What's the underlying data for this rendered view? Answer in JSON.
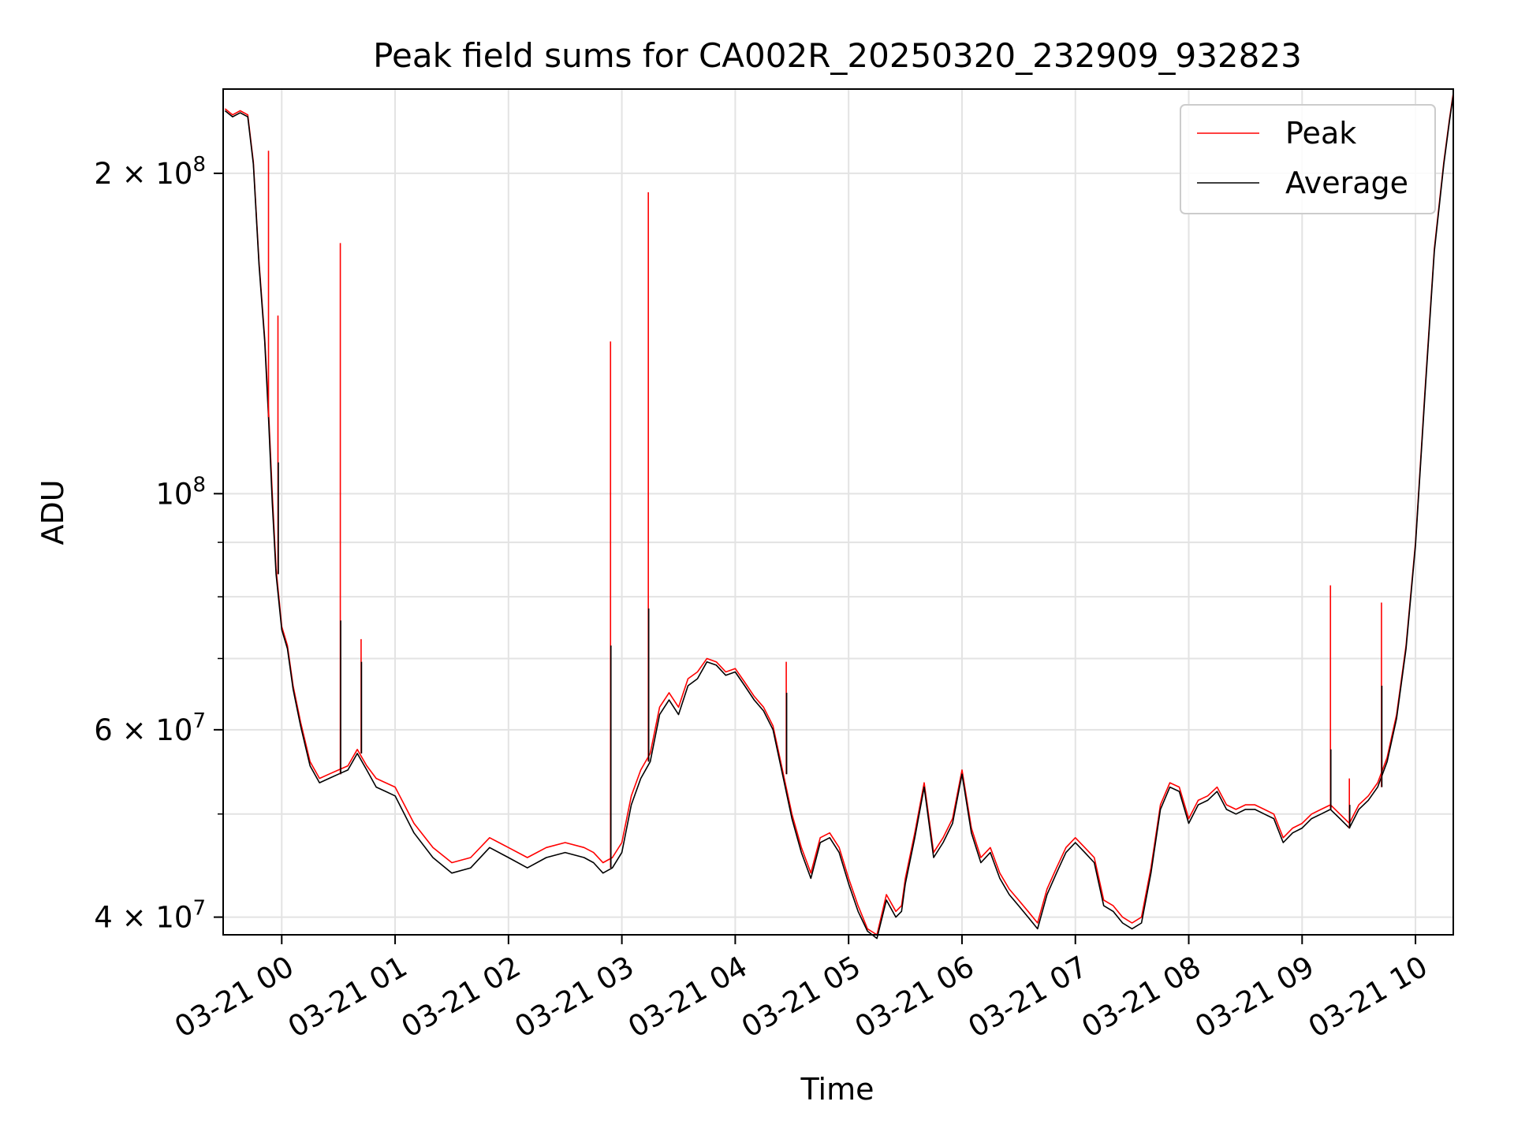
{
  "chart_data": {
    "type": "line",
    "title": "Peak field sums for CA002R_20250320_232909_932823",
    "xlabel": "Time",
    "ylabel": "ADU",
    "xlim": [
      "2025-03-20 23:29",
      "2025-03-21 10:20"
    ],
    "ylim": [
      38500000,
      240000000
    ],
    "yscale": "log",
    "x_ticks": [
      "03-21 00",
      "03-21 01",
      "03-21 02",
      "03-21 03",
      "03-21 04",
      "03-21 05",
      "03-21 06",
      "03-21 07",
      "03-21 08",
      "03-21 09",
      "03-21 10"
    ],
    "y_ticks": [
      {
        "value": 40000000,
        "base": "4",
        "exp": "7"
      },
      {
        "value": 60000000,
        "base": "6",
        "exp": "7"
      },
      {
        "value": 100000000,
        "base": "",
        "exp": "8"
      },
      {
        "value": 200000000,
        "base": "2",
        "exp": "8"
      }
    ],
    "grid": true,
    "legend_position": "top-right",
    "series": [
      {
        "name": "Peak",
        "color": "#ff0000",
        "x": [
          "03-20 23:30",
          "03-20 23:34",
          "03-20 23:38",
          "03-20 23:42",
          "03-20 23:45",
          "03-20 23:48",
          "03-20 23:51",
          "03-20 23:53",
          "03-20 23:55",
          "03-20 23:57",
          "03-21 00:00",
          "03-21 00:03",
          "03-21 00:06",
          "03-21 00:10",
          "03-21 00:15",
          "03-21 00:20",
          "03-21 00:25",
          "03-21 00:30",
          "03-21 00:35",
          "03-21 00:40",
          "03-21 00:45",
          "03-21 00:50",
          "03-21 00:55",
          "03-21 01:00",
          "03-21 01:10",
          "03-21 01:20",
          "03-21 01:30",
          "03-21 01:40",
          "03-21 01:50",
          "03-21 02:00",
          "03-21 02:10",
          "03-21 02:20",
          "03-21 02:30",
          "03-21 02:40",
          "03-21 02:45",
          "03-21 02:50",
          "03-21 02:55",
          "03-21 03:00",
          "03-21 03:05",
          "03-21 03:10",
          "03-21 03:15",
          "03-21 03:20",
          "03-21 03:25",
          "03-21 03:30",
          "03-21 03:35",
          "03-21 03:40",
          "03-21 03:45",
          "03-21 03:50",
          "03-21 03:55",
          "03-21 04:00",
          "03-21 04:05",
          "03-21 04:10",
          "03-21 04:15",
          "03-21 04:20",
          "03-21 04:25",
          "03-21 04:30",
          "03-21 04:35",
          "03-21 04:40",
          "03-21 04:45",
          "03-21 04:50",
          "03-21 04:55",
          "03-21 05:00",
          "03-21 05:05",
          "03-21 05:10",
          "03-21 05:15",
          "03-21 05:20",
          "03-21 05:25",
          "03-21 05:28",
          "03-21 05:30",
          "03-21 05:35",
          "03-21 05:40",
          "03-21 05:45",
          "03-21 05:50",
          "03-21 05:55",
          "03-21 06:00",
          "03-21 06:05",
          "03-21 06:10",
          "03-21 06:15",
          "03-21 06:20",
          "03-21 06:25",
          "03-21 06:30",
          "03-21 06:35",
          "03-21 06:40",
          "03-21 06:45",
          "03-21 06:50",
          "03-21 06:55",
          "03-21 07:00",
          "03-21 07:05",
          "03-21 07:10",
          "03-21 07:15",
          "03-21 07:20",
          "03-21 07:25",
          "03-21 07:30",
          "03-21 07:35",
          "03-21 07:40",
          "03-21 07:45",
          "03-21 07:50",
          "03-21 07:55",
          "03-21 08:00",
          "03-21 08:05",
          "03-21 08:10",
          "03-21 08:15",
          "03-21 08:20",
          "03-21 08:25",
          "03-21 08:30",
          "03-21 08:35",
          "03-21 08:40",
          "03-21 08:45",
          "03-21 08:50",
          "03-21 08:55",
          "03-21 09:00",
          "03-21 09:05",
          "03-21 09:10",
          "03-21 09:15",
          "03-21 09:20",
          "03-21 09:25",
          "03-21 09:30",
          "03-21 09:35",
          "03-21 09:40",
          "03-21 09:45",
          "03-21 09:50",
          "03-21 09:55",
          "03-21 10:00",
          "03-21 10:05",
          "03-21 10:10",
          "03-21 10:15",
          "03-21 10:18",
          "03-21 10:20"
        ],
        "y": [
          230000000,
          227000000,
          229000000,
          227000000,
          205000000,
          165000000,
          140000000,
          120000000,
          100000000,
          85000000,
          75000000,
          72000000,
          66000000,
          61000000,
          56000000,
          54000000,
          54500000,
          55000000,
          55500000,
          57500000,
          55500000,
          54000000,
          53500000,
          53000000,
          49000000,
          46500000,
          45000000,
          45500000,
          47500000,
          46500000,
          45500000,
          46500000,
          47000000,
          46500000,
          46000000,
          45000000,
          45500000,
          47000000,
          52000000,
          55000000,
          57000000,
          63000000,
          65000000,
          63000000,
          67000000,
          68000000,
          70000000,
          69500000,
          68000000,
          68500000,
          66500000,
          64500000,
          63000000,
          60500000,
          55000000,
          50000000,
          46500000,
          44000000,
          47500000,
          48000000,
          46500000,
          43500000,
          41000000,
          39000000,
          38500000,
          42000000,
          40500000,
          41000000,
          43500000,
          48000000,
          53500000,
          46000000,
          47500000,
          49500000,
          55000000,
          48500000,
          45500000,
          46500000,
          44000000,
          42500000,
          41500000,
          40500000,
          39500000,
          42500000,
          44500000,
          46500000,
          47500000,
          46500000,
          45500000,
          41500000,
          41000000,
          40000000,
          39500000,
          40000000,
          44500000,
          51000000,
          53500000,
          53000000,
          49500000,
          51500000,
          52000000,
          53000000,
          51000000,
          50500000,
          51000000,
          51000000,
          50500000,
          50000000,
          47500000,
          48500000,
          49000000,
          50000000,
          50500000,
          51000000,
          50000000,
          49000000,
          51000000,
          52000000,
          53500000,
          56500000,
          62000000,
          72000000,
          90000000,
          125000000,
          170000000,
          205000000,
          225000000,
          238000000
        ]
      },
      {
        "name": "Average",
        "color": "#000000",
        "x": [
          "03-20 23:30",
          "03-20 23:34",
          "03-20 23:38",
          "03-20 23:42",
          "03-20 23:45",
          "03-20 23:48",
          "03-20 23:51",
          "03-20 23:53",
          "03-20 23:55",
          "03-20 23:57",
          "03-21 00:00",
          "03-21 00:03",
          "03-21 00:06",
          "03-21 00:10",
          "03-21 00:15",
          "03-21 00:20",
          "03-21 00:25",
          "03-21 00:30",
          "03-21 00:35",
          "03-21 00:40",
          "03-21 00:45",
          "03-21 00:50",
          "03-21 00:55",
          "03-21 01:00",
          "03-21 01:10",
          "03-21 01:20",
          "03-21 01:30",
          "03-21 01:40",
          "03-21 01:50",
          "03-21 02:00",
          "03-21 02:10",
          "03-21 02:20",
          "03-21 02:30",
          "03-21 02:40",
          "03-21 02:45",
          "03-21 02:50",
          "03-21 02:55",
          "03-21 03:00",
          "03-21 03:05",
          "03-21 03:10",
          "03-21 03:15",
          "03-21 03:20",
          "03-21 03:25",
          "03-21 03:30",
          "03-21 03:35",
          "03-21 03:40",
          "03-21 03:45",
          "03-21 03:50",
          "03-21 03:55",
          "03-21 04:00",
          "03-21 04:05",
          "03-21 04:10",
          "03-21 04:15",
          "03-21 04:20",
          "03-21 04:25",
          "03-21 04:30",
          "03-21 04:35",
          "03-21 04:40",
          "03-21 04:45",
          "03-21 04:50",
          "03-21 04:55",
          "03-21 05:00",
          "03-21 05:05",
          "03-21 05:10",
          "03-21 05:15",
          "03-21 05:20",
          "03-21 05:25",
          "03-21 05:28",
          "03-21 05:30",
          "03-21 05:35",
          "03-21 05:40",
          "03-21 05:45",
          "03-21 05:50",
          "03-21 05:55",
          "03-21 06:00",
          "03-21 06:05",
          "03-21 06:10",
          "03-21 06:15",
          "03-21 06:20",
          "03-21 06:25",
          "03-21 06:30",
          "03-21 06:35",
          "03-21 06:40",
          "03-21 06:45",
          "03-21 06:50",
          "03-21 06:55",
          "03-21 07:00",
          "03-21 07:05",
          "03-21 07:10",
          "03-21 07:15",
          "03-21 07:20",
          "03-21 07:25",
          "03-21 07:30",
          "03-21 07:35",
          "03-21 07:40",
          "03-21 07:45",
          "03-21 07:50",
          "03-21 07:55",
          "03-21 08:00",
          "03-21 08:05",
          "03-21 08:10",
          "03-21 08:15",
          "03-21 08:20",
          "03-21 08:25",
          "03-21 08:30",
          "03-21 08:35",
          "03-21 08:40",
          "03-21 08:45",
          "03-21 08:50",
          "03-21 08:55",
          "03-21 09:00",
          "03-21 09:05",
          "03-21 09:10",
          "03-21 09:15",
          "03-21 09:20",
          "03-21 09:25",
          "03-21 09:30",
          "03-21 09:35",
          "03-21 09:40",
          "03-21 09:45",
          "03-21 09:50",
          "03-21 09:55",
          "03-21 10:00",
          "03-21 10:05",
          "03-21 10:10",
          "03-21 10:15",
          "03-21 10:18",
          "03-21 10:20"
        ],
        "y": [
          229000000,
          226000000,
          228000000,
          226000000,
          204000000,
          164000000,
          139000000,
          118000000,
          98000000,
          84000000,
          74500000,
          71500000,
          65500000,
          60500000,
          55500000,
          53500000,
          54000000,
          54500000,
          55000000,
          57000000,
          55000000,
          53000000,
          52500000,
          52000000,
          48000000,
          45500000,
          44000000,
          44500000,
          46500000,
          45500000,
          44500000,
          45500000,
          46000000,
          45500000,
          45000000,
          44000000,
          44500000,
          46000000,
          51000000,
          54000000,
          56000000,
          62000000,
          64000000,
          62000000,
          66000000,
          67000000,
          69500000,
          69000000,
          67500000,
          68000000,
          66000000,
          64000000,
          62500000,
          60000000,
          54500000,
          49500000,
          46000000,
          43500000,
          47000000,
          47500000,
          46000000,
          43000000,
          40500000,
          38800000,
          38200000,
          41500000,
          40000000,
          40500000,
          43000000,
          47500000,
          53000000,
          45500000,
          47000000,
          49000000,
          54500000,
          48000000,
          45000000,
          46000000,
          43500000,
          42000000,
          41000000,
          40000000,
          39000000,
          42000000,
          44000000,
          46000000,
          47000000,
          46000000,
          45000000,
          41000000,
          40500000,
          39500000,
          39000000,
          39500000,
          44000000,
          50500000,
          53000000,
          52500000,
          49000000,
          51000000,
          51500000,
          52500000,
          50500000,
          50000000,
          50500000,
          50500000,
          50000000,
          49500000,
          47000000,
          48000000,
          48500000,
          49500000,
          50000000,
          50500000,
          49500000,
          48500000,
          50500000,
          51500000,
          53000000,
          56000000,
          61500000,
          71500000,
          89500000,
          124000000,
          169000000,
          204000000,
          224000000,
          237000000
        ]
      }
    ],
    "spikes": [
      {
        "x": "03-20 23:53",
        "peak": 210000000,
        "average": 118000000
      },
      {
        "x": "03-20 23:58",
        "peak": 147000000,
        "average": 107000000
      },
      {
        "x": "03-21 00:31",
        "peak": 172000000,
        "average": 76000000
      },
      {
        "x": "03-21 00:42",
        "peak": 73000000,
        "average": 69500000
      },
      {
        "x": "03-21 02:54",
        "peak": 139000000,
        "average": 72000000
      },
      {
        "x": "03-21 03:14",
        "peak": 192000000,
        "average": 78000000
      },
      {
        "x": "03-21 04:27",
        "peak": 69500000,
        "average": 65000000
      },
      {
        "x": "03-21 09:15",
        "peak": 82000000,
        "average": 57500000
      },
      {
        "x": "03-21 09:25",
        "peak": 54000000,
        "average": 51000000
      },
      {
        "x": "03-21 09:42",
        "peak": 79000000,
        "average": 66000000
      }
    ]
  }
}
